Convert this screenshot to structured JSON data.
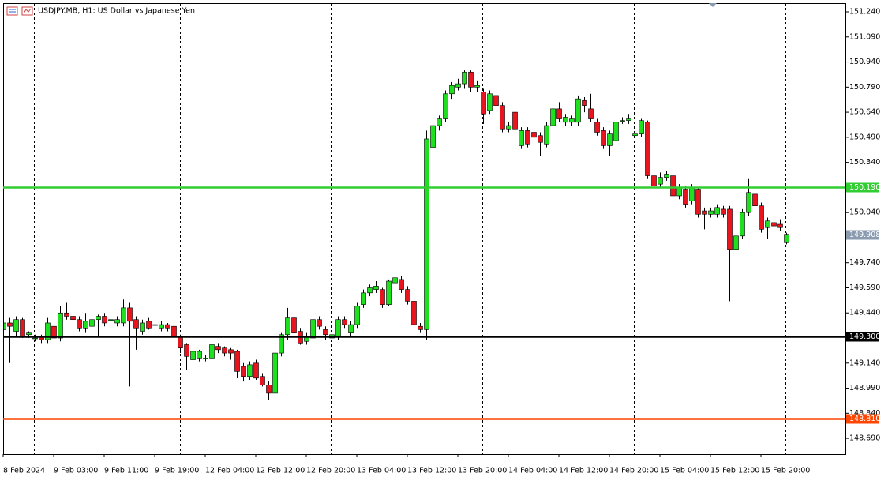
{
  "chart_data": {
    "type": "candlestick",
    "title": "USDJPY.MB, H1:  US Dollar vs Japanese Yen",
    "up_color": "#1ee01e",
    "down_color": "#e8141e",
    "categories": [
      "8 Feb 2024",
      null,
      null,
      null,
      null,
      null,
      null,
      null,
      "9 Feb 03:00",
      null,
      null,
      null,
      null,
      null,
      null,
      null,
      "9 Feb 11:00",
      null,
      null,
      null,
      null,
      null,
      null,
      null,
      "9 Feb 19:00",
      null,
      null,
      null,
      null,
      null,
      null,
      null,
      "12 Feb 04:00",
      null,
      null,
      null,
      null,
      null,
      null,
      null,
      "12 Feb 12:00",
      null,
      null,
      null,
      null,
      null,
      null,
      null,
      "12 Feb 20:00",
      null,
      null,
      null,
      null,
      null,
      null,
      null,
      "13 Feb 04:00",
      null,
      null,
      null,
      null,
      null,
      null,
      null,
      "13 Feb 12:00",
      null,
      null,
      null,
      null,
      null,
      null,
      null,
      "13 Feb 20:00",
      null,
      null,
      null,
      null,
      null,
      null,
      null,
      "14 Feb 04:00",
      null,
      null,
      null,
      null,
      null,
      null,
      null,
      "14 Feb 12:00",
      null,
      null,
      null,
      null,
      null,
      null,
      null,
      "14 Feb 20:00",
      null,
      null,
      null,
      null,
      null,
      null,
      null,
      "15 Feb 04:00",
      null,
      null,
      null,
      null,
      null,
      null,
      null,
      "15 Feb 12:00",
      null,
      null,
      null,
      null,
      null,
      null,
      null,
      "15 Feb 20:00",
      null,
      null,
      null,
      null
    ],
    "open": [
      149.34,
      149.38,
      149.33,
      149.4,
      149.31,
      149.29,
      149.3,
      149.28,
      149.36,
      149.29,
      149.44,
      149.42,
      149.4,
      149.35,
      149.36,
      149.4,
      149.42,
      149.4,
      149.38,
      149.38,
      149.47,
      149.4,
      149.33,
      149.39,
      149.37,
      149.35,
      149.37,
      149.36,
      149.3,
      149.25,
      149.16,
      149.17,
      149.17,
      149.17,
      149.24,
      149.23,
      149.22,
      149.21,
      149.12,
      149.06,
      149.14,
      149.06,
      149.01,
      148.96,
      149.2,
      149.31,
      149.41,
      149.33,
      149.27,
      149.29,
      149.4,
      149.34,
      149.29,
      149.3,
      149.4,
      149.32,
      149.37,
      149.49,
      149.56,
      149.58,
      149.58,
      149.49,
      149.62,
      149.64,
      149.58,
      149.51,
      149.36,
      149.34,
      150.43,
      150.56,
      150.6,
      150.75,
      150.79,
      150.81,
      150.88,
      150.79,
      150.76,
      150.65,
      150.74,
      150.68,
      150.54,
      150.64,
      150.44,
      150.53,
      150.52,
      150.5,
      150.45,
      150.56,
      150.66,
      150.58,
      150.58,
      150.58,
      150.71,
      150.66,
      150.58,
      150.53,
      150.44,
      150.47,
      150.59,
      150.59,
      150.5,
      150.51,
      150.58,
      150.26,
      150.21,
      150.25,
      150.26,
      150.14,
      150.18,
      150.11,
      150.18,
      150.05,
      150.03,
      150.03,
      150.06,
      150.06,
      149.82,
      149.9,
      150.04,
      150.15,
      150.08,
      149.95,
      149.98,
      149.97,
      149.86
    ],
    "high": [
      149.4,
      149.41,
      149.42,
      149.41,
      149.33,
      149.31,
      149.31,
      149.41,
      149.38,
      149.48,
      149.5,
      149.44,
      149.42,
      149.44,
      149.57,
      149.43,
      149.44,
      149.44,
      149.42,
      149.52,
      149.5,
      149.42,
      149.4,
      149.41,
      149.39,
      149.39,
      149.38,
      149.37,
      149.31,
      149.26,
      149.22,
      149.22,
      149.19,
      149.26,
      149.26,
      149.24,
      149.23,
      149.22,
      149.14,
      149.15,
      149.16,
      149.08,
      149.03,
      149.22,
      149.32,
      149.47,
      149.44,
      149.35,
      149.32,
      149.43,
      149.42,
      149.36,
      149.33,
      149.42,
      149.42,
      149.39,
      149.5,
      149.58,
      149.61,
      149.63,
      149.59,
      149.64,
      149.71,
      149.66,
      149.6,
      149.53,
      149.38,
      150.53,
      150.58,
      150.62,
      150.77,
      150.82,
      150.84,
      150.89,
      150.89,
      150.83,
      150.78,
      150.77,
      150.76,
      150.7,
      150.58,
      150.65,
      150.55,
      150.55,
      150.54,
      150.52,
      150.58,
      150.68,
      150.7,
      150.63,
      150.62,
      150.74,
      150.73,
      150.75,
      150.6,
      150.55,
      150.53,
      150.6,
      150.61,
      150.63,
      150.53,
      150.6,
      150.59,
      150.28,
      150.28,
      150.29,
      150.28,
      150.21,
      150.2,
      150.21,
      150.19,
      150.07,
      150.07,
      150.09,
      150.08,
      150.08,
      149.92,
      150.06,
      150.24,
      150.18,
      150.1,
      150.01,
      150.01,
      150.0,
      149.92
    ],
    "low": [
      149.31,
      149.14,
      149.3,
      149.29,
      149.29,
      149.27,
      149.26,
      149.26,
      149.27,
      149.27,
      149.4,
      149.37,
      149.33,
      149.32,
      149.22,
      149.3,
      149.36,
      149.37,
      149.36,
      149.36,
      149.0,
      149.22,
      149.31,
      149.34,
      149.35,
      149.33,
      149.33,
      149.28,
      149.2,
      149.1,
      149.13,
      149.15,
      149.15,
      149.16,
      149.2,
      149.18,
      149.16,
      149.05,
      149.03,
      149.04,
      149.04,
      149.0,
      148.92,
      148.92,
      149.18,
      149.28,
      149.3,
      149.25,
      149.25,
      149.27,
      149.34,
      149.28,
      149.28,
      149.28,
      149.35,
      149.3,
      149.35,
      149.47,
      149.54,
      149.56,
      149.47,
      149.48,
      149.6,
      149.56,
      149.49,
      149.35,
      149.32,
      149.28,
      150.34,
      150.53,
      150.58,
      150.72,
      150.77,
      150.78,
      150.76,
      150.76,
      150.57,
      150.63,
      150.66,
      150.52,
      150.52,
      150.52,
      150.42,
      150.43,
      150.47,
      150.38,
      150.43,
      150.54,
      150.58,
      150.56,
      150.56,
      150.56,
      150.64,
      150.58,
      150.5,
      150.42,
      150.38,
      150.45,
      150.57,
      150.57,
      150.48,
      150.49,
      150.24,
      150.13,
      150.19,
      150.23,
      150.12,
      150.12,
      150.07,
      150.09,
      150.01,
      149.94,
      150.01,
      150.01,
      150.01,
      149.51,
      149.81,
      149.88,
      150.02,
      150.06,
      149.92,
      149.88,
      149.94,
      149.93,
      149.85
    ],
    "close": [
      149.38,
      149.36,
      149.4,
      149.3,
      149.32,
      149.29,
      149.28,
      149.38,
      149.29,
      149.44,
      149.42,
      149.4,
      149.35,
      149.39,
      149.4,
      149.42,
      149.38,
      149.4,
      149.4,
      149.47,
      149.39,
      149.35,
      149.38,
      149.35,
      149.37,
      149.37,
      149.35,
      149.3,
      149.23,
      149.18,
      149.21,
      149.21,
      149.17,
      149.25,
      149.22,
      149.2,
      149.2,
      149.09,
      149.06,
      149.13,
      149.05,
      149.01,
      148.96,
      149.2,
      149.31,
      149.41,
      149.32,
      149.26,
      149.3,
      149.4,
      149.36,
      149.31,
      149.31,
      149.4,
      149.37,
      149.37,
      149.48,
      149.56,
      149.59,
      149.6,
      149.49,
      149.63,
      149.65,
      149.58,
      149.51,
      149.37,
      149.34,
      150.48,
      150.56,
      150.6,
      150.75,
      150.8,
      150.81,
      150.88,
      150.79,
      150.8,
      150.63,
      150.75,
      150.68,
      150.54,
      150.56,
      150.54,
      150.53,
      150.45,
      150.49,
      150.46,
      150.56,
      150.66,
      150.6,
      150.61,
      150.6,
      150.72,
      150.68,
      150.6,
      150.52,
      150.44,
      150.51,
      150.58,
      150.59,
      150.6,
      150.51,
      150.59,
      150.26,
      150.2,
      150.25,
      150.27,
      150.14,
      150.19,
      150.09,
      150.19,
      150.03,
      150.03,
      150.05,
      150.07,
      150.03,
      149.82,
      149.9,
      150.04,
      150.16,
      150.08,
      149.94,
      149.99,
      149.96,
      149.95,
      149.91
    ],
    "ylim": [
      148.596,
      151.292
    ],
    "yticks": [
      {
        "value": 151.24,
        "label": "151.240"
      },
      {
        "value": 151.09,
        "label": "151.090"
      },
      {
        "value": 150.94,
        "label": "150.940"
      },
      {
        "value": 150.79,
        "label": "150.790"
      },
      {
        "value": 150.64,
        "label": "150.640"
      },
      {
        "value": 150.49,
        "label": "150.490"
      },
      {
        "value": 150.34,
        "label": "150.340"
      },
      {
        "value": 150.04,
        "label": "150.040"
      },
      {
        "value": 149.74,
        "label": "149.740"
      },
      {
        "value": 149.59,
        "label": "149.590"
      },
      {
        "value": 149.44,
        "label": "149.440"
      },
      {
        "value": 149.14,
        "label": "149.140"
      },
      {
        "value": 148.99,
        "label": "148.990"
      },
      {
        "value": 148.84,
        "label": "148.840"
      },
      {
        "value": 148.69,
        "label": "148.690"
      }
    ],
    "levels": [
      {
        "value": 150.19,
        "label": "150.190",
        "color": "#32cd32"
      },
      {
        "value": 149.908,
        "label": "149.908",
        "color": "#8a9bb0"
      },
      {
        "value": 149.3,
        "label": "149.300",
        "color": "#000000"
      },
      {
        "value": 148.81,
        "label": "148.810",
        "color": "#ff4500"
      }
    ]
  }
}
